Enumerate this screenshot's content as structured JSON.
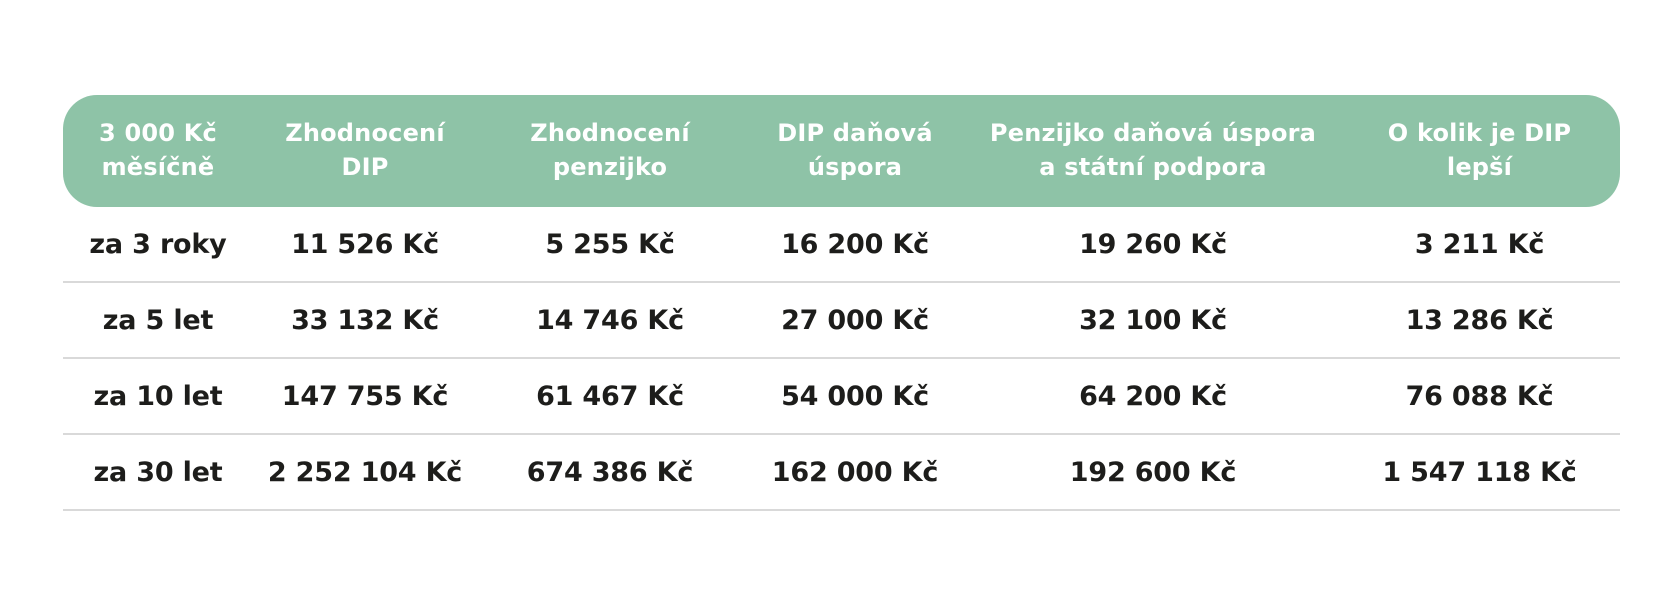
{
  "style": {
    "page_bg": "#ffffff",
    "header_bg": "#8ec3a7",
    "header_text": "#ffffff",
    "body_text": "#1d1d1b",
    "divider": "#d9d9d9"
  },
  "chart_data": {
    "type": "table",
    "title": "",
    "currency": "Kč",
    "columns": [
      "3 000 Kč měsíčně",
      "Zhodnocení DIP",
      "Zhodnocení penzijko",
      "DIP daňová úspora",
      "Penzijko daňová úspora a státní podpora",
      "O kolik je DIP lepší"
    ],
    "columns_display": [
      "3 000 Kč\nměsíčně",
      "Zhodnocení\nDIP",
      "Zhodnocení\npenzijko",
      "DIP daňová\núspora",
      "Penzijko daňová úspora\na státní podpora",
      "O kolik je DIP\nlepší"
    ],
    "rows": [
      [
        "za 3 roky",
        "11 526 Kč",
        "5 255 Kč",
        "16 200 Kč",
        "19 260 Kč",
        "3 211 Kč"
      ],
      [
        "za 5 let",
        "33 132 Kč",
        "14 746 Kč",
        "27 000 Kč",
        "32 100 Kč",
        "13 286 Kč"
      ],
      [
        "za 10 let",
        "147 755 Kč",
        "61 467 Kč",
        "54 000 Kč",
        "64 200 Kč",
        "76 088 Kč"
      ],
      [
        "za 30 let",
        "2 252 104 Kč",
        "674 386 Kč",
        "162 000 Kč",
        "192 600 Kč",
        "1 547 118 Kč"
      ]
    ],
    "values_numeric_kc": {
      "za 3 roky": [
        11526,
        5255,
        16200,
        19260,
        3211
      ],
      "za 5 let": [
        33132,
        14746,
        27000,
        32100,
        13286
      ],
      "za 10 let": [
        147755,
        61467,
        54000,
        64200,
        76088
      ],
      "za 30 let": [
        2252104,
        674386,
        162000,
        192600,
        1547118
      ]
    }
  }
}
